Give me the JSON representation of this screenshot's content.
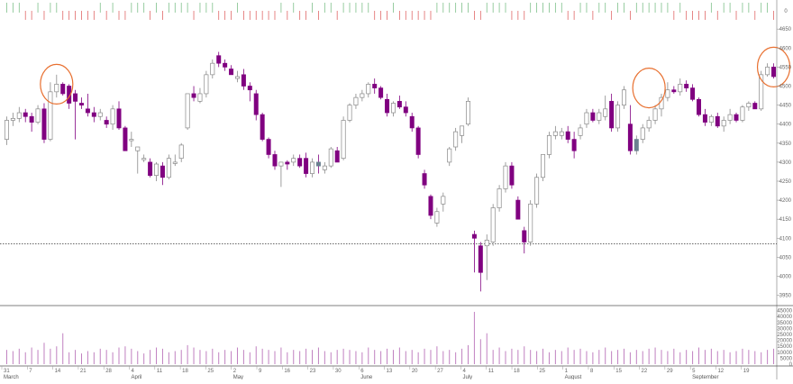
{
  "chart_data": {
    "type": "candlestick",
    "price_axis": {
      "ticks": [
        3950,
        4000,
        4050,
        4100,
        4150,
        4200,
        4250,
        4300,
        4350,
        4400,
        4450,
        4500,
        4550,
        4600,
        4650
      ],
      "top_label": "0",
      "ylim": [
        3930,
        4660
      ]
    },
    "volume_axis": {
      "ticks": [
        0,
        5000,
        10000,
        15000,
        20000,
        25000,
        30000,
        35000,
        40000,
        45000
      ],
      "ylim": [
        0,
        47000
      ]
    },
    "reference_line": 4085,
    "date_labels": [
      "31",
      "7",
      "14",
      "21",
      "28",
      "4",
      "11",
      "18",
      "25",
      "2",
      "9",
      "16",
      "23",
      "30",
      "6",
      "13",
      "20",
      "27",
      "4",
      "11",
      "18",
      "25",
      "1",
      "8",
      "15",
      "22",
      "29",
      "5",
      "12",
      "19"
    ],
    "month_labels": [
      "March",
      "April",
      "May",
      "June",
      "July",
      "August",
      "September"
    ],
    "colors": {
      "up": "#ffffff",
      "up_border": "#888888",
      "down": "#800080",
      "grey": "#6b8090",
      "volume": "#c080c0",
      "signal_up": "#7ec08a",
      "signal_down": "#e06868",
      "circle": "#e87030"
    },
    "candles": [
      [
        4360,
        4420,
        4345,
        4410
      ],
      [
        4410,
        4430,
        4395,
        4415
      ],
      [
        4415,
        4445,
        4405,
        4430
      ],
      [
        4430,
        4440,
        4405,
        4420
      ],
      [
        4420,
        4430,
        4380,
        4405
      ],
      [
        4405,
        4450,
        4400,
        4440
      ],
      [
        4440,
        4455,
        4350,
        4360
      ],
      [
        4360,
        4510,
        4355,
        4485
      ],
      [
        4485,
        4530,
        4470,
        4505
      ],
      [
        4505,
        4510,
        4475,
        4480
      ],
      [
        4500,
        4505,
        4440,
        4455
      ],
      [
        4480,
        4490,
        4360,
        4460
      ],
      [
        4455,
        4470,
        4440,
        4450
      ],
      [
        4440,
        4480,
        4420,
        4430
      ],
      [
        4430,
        4445,
        4405,
        4420
      ],
      [
        4420,
        4440,
        4410,
        4430
      ],
      [
        4410,
        4420,
        4390,
        4400
      ],
      [
        4400,
        4450,
        4385,
        4440
      ],
      [
        4440,
        4460,
        4385,
        4390
      ],
      [
        4390,
        4395,
        4330,
        4330
      ],
      [
        4360,
        4380,
        4340,
        4360
      ],
      [
        4330,
        4340,
        4270,
        4340
      ],
      [
        4310,
        4320,
        4300,
        4310
      ],
      [
        4300,
        4310,
        4260,
        4265
      ],
      [
        4265,
        4300,
        4250,
        4295
      ],
      [
        4290,
        4300,
        4240,
        4260
      ],
      [
        4260,
        4320,
        4255,
        4310
      ],
      [
        4300,
        4320,
        4290,
        4300
      ],
      [
        4310,
        4350,
        4300,
        4345
      ],
      [
        4390,
        4480,
        4385,
        4480
      ],
      [
        4480,
        4500,
        4460,
        4470
      ],
      [
        4460,
        4495,
        4455,
        4480
      ],
      [
        4480,
        4540,
        4470,
        4530
      ],
      [
        4530,
        4570,
        4520,
        4560
      ],
      [
        4580,
        4590,
        4550,
        4560
      ],
      [
        4560,
        4570,
        4540,
        4550
      ],
      [
        4545,
        4555,
        4530,
        4530
      ],
      [
        4520,
        4540,
        4510,
        4525
      ],
      [
        4530,
        4545,
        4490,
        4500
      ],
      [
        4500,
        4510,
        4460,
        4490
      ],
      [
        4480,
        4490,
        4410,
        4425
      ],
      [
        4425,
        4430,
        4355,
        4360
      ],
      [
        4360,
        4365,
        4310,
        4320
      ],
      [
        4320,
        4330,
        4280,
        4290
      ],
      [
        4290,
        4300,
        4235,
        4300
      ],
      [
        4300,
        4305,
        4280,
        4295
      ],
      [
        4300,
        4320,
        4290,
        4310
      ],
      [
        4310,
        4320,
        4285,
        4290
      ],
      [
        4310,
        4325,
        4260,
        4270
      ],
      [
        4270,
        4310,
        4260,
        4300
      ],
      [
        4300,
        4320,
        4270,
        4290
      ],
      [
        4280,
        4300,
        4270,
        4290
      ],
      [
        4290,
        4340,
        4285,
        4335
      ],
      [
        4330,
        4340,
        4300,
        4300
      ],
      [
        4310,
        4420,
        4305,
        4410
      ],
      [
        4410,
        4455,
        4405,
        4450
      ],
      [
        4450,
        4480,
        4440,
        4470
      ],
      [
        4470,
        4490,
        4460,
        4480
      ],
      [
        4480,
        4510,
        4470,
        4505
      ],
      [
        4505,
        4520,
        4480,
        4495
      ],
      [
        4495,
        4500,
        4465,
        4470
      ],
      [
        4465,
        4480,
        4420,
        4430
      ],
      [
        4430,
        4460,
        4420,
        4455
      ],
      [
        4460,
        4475,
        4440,
        4445
      ],
      [
        4445,
        4460,
        4420,
        4430
      ],
      [
        4420,
        4430,
        4380,
        4390
      ],
      [
        4390,
        4395,
        4310,
        4320
      ],
      [
        4270,
        4280,
        4230,
        4240
      ],
      [
        4210,
        4215,
        4150,
        4160
      ],
      [
        4140,
        4180,
        4130,
        4170
      ],
      [
        4190,
        4220,
        4170,
        4210
      ],
      [
        4300,
        4340,
        4290,
        4335
      ],
      [
        4340,
        4390,
        4330,
        4380
      ],
      [
        4370,
        4395,
        4350,
        4395
      ],
      [
        4400,
        4470,
        4395,
        4460
      ],
      [
        4110,
        4120,
        4010,
        4100
      ],
      [
        4080,
        4090,
        3960,
        4010
      ],
      [
        4080,
        4110,
        3990,
        4095
      ],
      [
        4090,
        4190,
        4080,
        4180
      ],
      [
        4180,
        4240,
        4170,
        4230
      ],
      [
        4230,
        4300,
        4220,
        4290
      ],
      [
        4290,
        4300,
        4230,
        4240
      ],
      [
        4200,
        4210,
        4150,
        4150
      ],
      [
        4120,
        4130,
        4060,
        4090
      ],
      [
        4090,
        4200,
        4080,
        4190
      ],
      [
        4190,
        4270,
        4180,
        4260
      ],
      [
        4260,
        4320,
        4250,
        4320
      ],
      [
        4320,
        4380,
        4310,
        4370
      ],
      [
        4370,
        4395,
        4360,
        4380
      ],
      [
        4370,
        4390,
        4360,
        4380
      ],
      [
        4380,
        4395,
        4350,
        4360
      ],
      [
        4360,
        4380,
        4310,
        4330
      ],
      [
        4370,
        4400,
        4360,
        4390
      ],
      [
        4400,
        4440,
        4390,
        4430
      ],
      [
        4430,
        4440,
        4405,
        4410
      ],
      [
        4410,
        4440,
        4400,
        4430
      ],
      [
        4420,
        4475,
        4410,
        4440
      ],
      [
        4460,
        4480,
        4380,
        4390
      ],
      [
        4390,
        4460,
        4380,
        4450
      ],
      [
        4450,
        4500,
        4440,
        4490
      ],
      [
        4400,
        4450,
        4320,
        4330
      ],
      [
        4330,
        4370,
        4320,
        4360
      ],
      [
        4360,
        4400,
        4350,
        4390
      ],
      [
        4390,
        4420,
        4380,
        4410
      ],
      [
        4410,
        4450,
        4400,
        4440
      ],
      [
        4440,
        4480,
        4420,
        4470
      ],
      [
        4470,
        4510,
        4460,
        4490
      ],
      [
        4490,
        4500,
        4480,
        4485
      ],
      [
        4485,
        4520,
        4475,
        4505
      ],
      [
        4505,
        4515,
        4485,
        4495
      ],
      [
        4495,
        4505,
        4460,
        4465
      ],
      [
        4465,
        4470,
        4420,
        4425
      ],
      [
        4425,
        4440,
        4395,
        4405
      ],
      [
        4405,
        4425,
        4395,
        4420
      ],
      [
        4420,
        4430,
        4390,
        4395
      ],
      [
        4395,
        4420,
        4380,
        4410
      ],
      [
        4410,
        4440,
        4400,
        4425
      ],
      [
        4425,
        4430,
        4405,
        4410
      ],
      [
        4410,
        4450,
        4405,
        4445
      ],
      [
        4445,
        4460,
        4435,
        4455
      ],
      [
        4455,
        4460,
        4440,
        4440
      ],
      [
        4440,
        4540,
        4435,
        4530
      ],
      [
        4530,
        4560,
        4525,
        4550
      ],
      [
        4550,
        4560,
        4520,
        4525
      ]
    ],
    "greys": [
      50,
      101,
      124
    ],
    "volumes": [
      12000,
      11000,
      13000,
      10000,
      14000,
      12000,
      18000,
      13000,
      15000,
      26000,
      10000,
      12000,
      9000,
      11000,
      10000,
      13000,
      12000,
      10000,
      14000,
      15000,
      13000,
      11000,
      9000,
      12000,
      14000,
      13000,
      10000,
      11000,
      12000,
      16000,
      14000,
      12000,
      11000,
      13000,
      10000,
      12000,
      11000,
      14000,
      12000,
      10000,
      15000,
      13000,
      12000,
      11000,
      14000,
      10000,
      12000,
      11000,
      13000,
      12000,
      14000,
      11000,
      10000,
      12000,
      13000,
      12000,
      11000,
      10000,
      14000,
      12000,
      11000,
      13000,
      12000,
      14000,
      11000,
      12000,
      10000,
      13000,
      12000,
      15000,
      11000,
      12000,
      10000,
      13000,
      16000,
      44000,
      21000,
      26000,
      12000,
      14000,
      11000,
      13000,
      12000,
      15000,
      12000,
      11000,
      13000,
      10000,
      12000,
      11000,
      14000,
      12000,
      13000,
      11000,
      10000,
      12000,
      14000,
      11000,
      12000,
      13000,
      10000,
      12000,
      11000,
      13000,
      14000,
      12000,
      11000,
      13000,
      10000,
      12000,
      11000,
      14000,
      12000,
      13000,
      11000,
      12000,
      10000,
      11000,
      13000,
      12000,
      11000,
      10000,
      12000,
      13000,
      12000,
      14000,
      11000
    ]
  }
}
